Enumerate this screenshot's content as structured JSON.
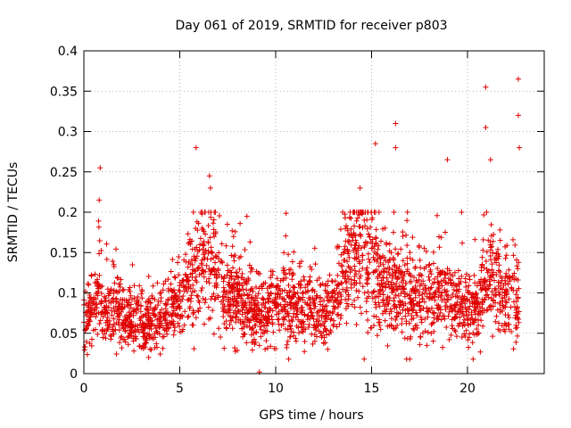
{
  "chart_data": {
    "type": "scatter",
    "title": "Day 061 of 2019, SRMTID for receiver p803",
    "xlabel": "GPS time / hours",
    "ylabel": "SRMTID / TECUs",
    "xlim": [
      0,
      24
    ],
    "ylim": [
      0,
      0.4
    ],
    "x_ticks": [
      "0",
      "5",
      "10",
      "15",
      "20"
    ],
    "x_tick_values": [
      0,
      5,
      10,
      15,
      20
    ],
    "y_ticks": [
      "0",
      "0.05",
      "0.1",
      "0.15",
      "0.2",
      "0.25",
      "0.3",
      "0.35",
      "0.4"
    ],
    "y_tick_values": [
      0,
      0.05,
      0.1,
      0.15,
      0.2,
      0.25,
      0.3,
      0.35,
      0.4
    ],
    "grid": true,
    "marker": "+",
    "color": "#e00000",
    "series": [
      {
        "name": "p803",
        "trend": [
          [
            0.0,
            0.055
          ],
          [
            0.5,
            0.085
          ],
          [
            0.8,
            0.095
          ],
          [
            1.0,
            0.08
          ],
          [
            2.0,
            0.07
          ],
          [
            3.0,
            0.06
          ],
          [
            4.0,
            0.065
          ],
          [
            5.0,
            0.09
          ],
          [
            5.5,
            0.11
          ],
          [
            6.0,
            0.125
          ],
          [
            6.5,
            0.14
          ],
          [
            7.0,
            0.12
          ],
          [
            7.5,
            0.1
          ],
          [
            8.5,
            0.085
          ],
          [
            9.0,
            0.07
          ],
          [
            9.5,
            0.08
          ],
          [
            10.5,
            0.09
          ],
          [
            11.5,
            0.085
          ],
          [
            12.5,
            0.075
          ],
          [
            13.0,
            0.09
          ],
          [
            13.5,
            0.12
          ],
          [
            14.0,
            0.15
          ],
          [
            14.5,
            0.16
          ],
          [
            15.0,
            0.14
          ],
          [
            15.5,
            0.12
          ],
          [
            16.0,
            0.11
          ],
          [
            17.0,
            0.1
          ],
          [
            18.0,
            0.09
          ],
          [
            18.8,
            0.1
          ],
          [
            19.5,
            0.085
          ],
          [
            20.5,
            0.08
          ],
          [
            21.0,
            0.12
          ],
          [
            21.5,
            0.11
          ],
          [
            22.0,
            0.09
          ],
          [
            22.7,
            0.09
          ]
        ],
        "peaks": [
          [
            0.85,
            0.255
          ],
          [
            0.8,
            0.215
          ],
          [
            5.85,
            0.28
          ],
          [
            6.55,
            0.245
          ],
          [
            6.6,
            0.23
          ],
          [
            8.5,
            0.195
          ],
          [
            14.4,
            0.23
          ],
          [
            15.2,
            0.285
          ],
          [
            16.25,
            0.31
          ],
          [
            16.25,
            0.28
          ],
          [
            18.95,
            0.265
          ],
          [
            20.95,
            0.355
          ],
          [
            20.95,
            0.305
          ],
          [
            21.2,
            0.265
          ],
          [
            22.65,
            0.365
          ],
          [
            22.65,
            0.32
          ],
          [
            22.7,
            0.28
          ],
          [
            9.15,
            0.002
          ]
        ],
        "x_range": [
          0,
          22.7
        ],
        "point_count": 2600
      }
    ]
  }
}
